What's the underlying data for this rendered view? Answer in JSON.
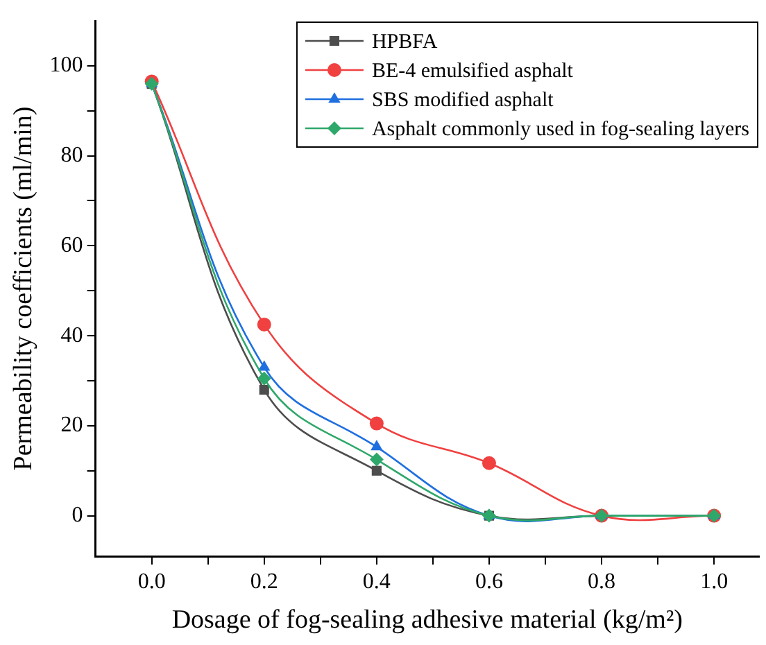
{
  "chart_data": {
    "type": "line",
    "xlabel": "Dosage of fog-sealing adhesive material (kg/m²)",
    "ylabel": "Permeability coefficients (ml/min)",
    "x": [
      0,
      0.2,
      0.4,
      0.6,
      0.8,
      1.0
    ],
    "xlim": [
      -0.1,
      1.08
    ],
    "xticks": [
      {
        "value": 0,
        "label": "0.0"
      },
      {
        "value": 0.1,
        "label": null
      },
      {
        "value": 0.2,
        "label": "0.2"
      },
      {
        "value": 0.3,
        "label": null
      },
      {
        "value": 0.4,
        "label": "0.4"
      },
      {
        "value": 0.5,
        "label": null
      },
      {
        "value": 0.6,
        "label": "0.6"
      },
      {
        "value": 0.7,
        "label": null
      },
      {
        "value": 0.8,
        "label": "0.8"
      },
      {
        "value": 0.9,
        "label": null
      },
      {
        "value": 1.0,
        "label": "1.0"
      }
    ],
    "ylim": [
      -9,
      110
    ],
    "yticks": [
      0,
      {
        "value": 10,
        "label": null
      },
      20,
      {
        "value": 30,
        "label": null
      },
      40,
      {
        "value": 50,
        "label": null
      },
      60,
      {
        "value": 70,
        "label": null
      },
      80,
      {
        "value": 90,
        "label": null
      },
      100
    ],
    "series": [
      {
        "name": "HPBFA",
        "color": "#4d4d4d",
        "marker": "square",
        "values": [
          96,
          28,
          10,
          0,
          0,
          0
        ]
      },
      {
        "name": "BE-4 emulsified asphalt",
        "color": "#f04040",
        "marker": "circle",
        "values": [
          96.5,
          42.5,
          20.5,
          11.7,
          0,
          0
        ]
      },
      {
        "name": "SBS modified asphalt",
        "color": "#1f6fe0",
        "marker": "triangle",
        "values": [
          96,
          33,
          15.3,
          0,
          0,
          0
        ]
      },
      {
        "name": "Asphalt commonly used in fog-sealing layers",
        "color": "#2ea86a",
        "marker": "diamond",
        "values": [
          96,
          30.5,
          12.5,
          0,
          0,
          0
        ]
      }
    ],
    "grid": false,
    "legend": "top right"
  }
}
